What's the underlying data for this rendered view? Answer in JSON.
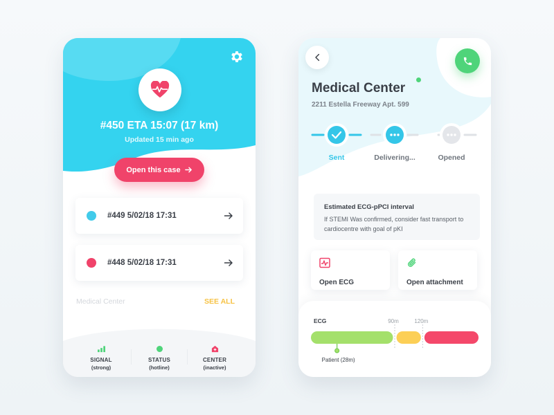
{
  "left_card": {
    "case_title": "#450 ETA 15:07 (17 km)",
    "updated": "Updated 15 min ago",
    "open_button": "Open this case",
    "cases": [
      {
        "label": "#449 5/02/18 17:31",
        "color": "#42cbea"
      },
      {
        "label": "#448 5/02/18 17:31",
        "color": "#f0436a"
      }
    ],
    "section_label": "Medical Center",
    "see_all": "SEE ALL",
    "stats": [
      {
        "label": "SIGNAL",
        "sub": "(strong)",
        "icon": "signal-icon",
        "color": "#4fd47a"
      },
      {
        "label": "STATUS",
        "sub": "(hotline)",
        "icon": "status-dot-icon",
        "color": "#4fd47a"
      },
      {
        "label": "CENTER",
        "sub": "(inactive)",
        "icon": "hospital-icon",
        "color": "#f0436a"
      }
    ],
    "accent": "#34d3ef"
  },
  "right_card": {
    "title": "Medical Center",
    "address": "2211 Estella Freeway Apt. 599",
    "steps": [
      {
        "label": "Sent",
        "state": "done",
        "color": "#34c6e8"
      },
      {
        "label": "Delivering...",
        "state": "active",
        "color": "#34c6e8"
      },
      {
        "label": "Opened",
        "state": "pending",
        "color": "#dfe2e6"
      }
    ],
    "info": {
      "heading": "Estimated ECG-pPCI interval",
      "body": "If STEMI Was confirmed, consider fast transport to cardiocentre with goal of pKI"
    },
    "actions": [
      {
        "label": "Open ECG",
        "icon": "ecg-icon",
        "color": "#f0436a"
      },
      {
        "label": "Open attachment",
        "icon": "paperclip-icon",
        "color": "#4fd47a"
      }
    ],
    "timeline": {
      "label": "ECG",
      "marks": [
        "90m",
        "120m"
      ],
      "segments": [
        {
          "color": "#a4e06b",
          "minutes": [
            0,
            90
          ]
        },
        {
          "color": "#fccf56",
          "minutes": [
            90,
            120
          ]
        },
        {
          "color": "#f4486a",
          "minutes": [
            120,
            180
          ]
        }
      ],
      "marker": {
        "label": "Patient (28m)",
        "minutes": 28
      }
    }
  }
}
